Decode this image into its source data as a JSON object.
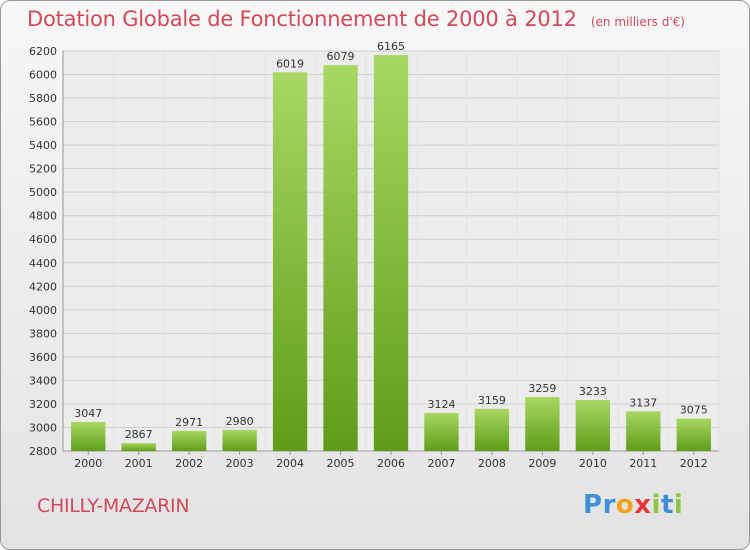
{
  "header": {
    "title": "Dotation Globale de Fonctionnement de 2000 à 2012",
    "unit": "(en milliers d'€)"
  },
  "footer": {
    "city": "CHILLY-MAZARIN",
    "logo": "Proxiti"
  },
  "colors": {
    "title": "#d1495b",
    "bar_light": "#a8d763",
    "bar_dark": "#5f9d18",
    "grid": "#cfcfcf"
  },
  "chart_data": {
    "type": "bar",
    "categories": [
      "2000",
      "2001",
      "2002",
      "2003",
      "2004",
      "2005",
      "2006",
      "2007",
      "2008",
      "2009",
      "2010",
      "2011",
      "2012"
    ],
    "values": [
      3047,
      2867,
      2971,
      2980,
      6019,
      6079,
      6165,
      3124,
      3159,
      3259,
      3233,
      3137,
      3075
    ],
    "ylim": [
      2800,
      6200
    ],
    "ytick_step": 200,
    "grid": true,
    "legend": "none"
  }
}
